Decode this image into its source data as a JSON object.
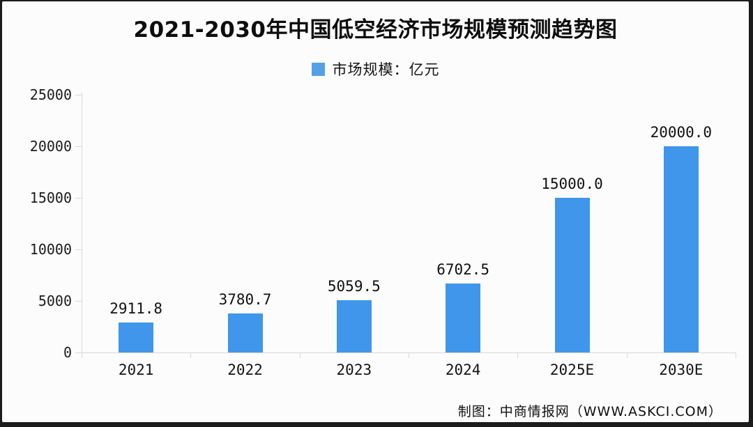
{
  "frame": {
    "border_color": "#1c1c1c",
    "background_color": "#fcfcfc"
  },
  "title": "2021-2030年中国低空经济市场规模预测趋势图",
  "legend": {
    "label": "市场规模：亿元",
    "swatch_color": "#54a0e4"
  },
  "credit": "制图：中商情报网（WWW.ASKCI.COM）",
  "chart_data": {
    "type": "bar",
    "title": "2021-2030年中国低空经济市场规模预测趋势图",
    "legend_entries": [
      "市场规模：亿元"
    ],
    "legend_position": "top-center",
    "categories": [
      "2021",
      "2022",
      "2023",
      "2024",
      "2025E",
      "2030E"
    ],
    "values": [
      2911.8,
      3780.7,
      5059.5,
      6702.5,
      15000.0,
      20000.0
    ],
    "value_labels": [
      "2911.8",
      "3780.7",
      "5059.5",
      "6702.5",
      "15000.0",
      "20000.0"
    ],
    "xlabel": "",
    "ylabel": "",
    "ylim": [
      0,
      25000
    ],
    "yticks": [
      0,
      5000,
      10000,
      15000,
      20000,
      25000
    ],
    "ytick_labels": [
      "0",
      "5000",
      "10000",
      "15000",
      "20000",
      "25000"
    ],
    "grid": false,
    "bar_color": "#3f96ea",
    "axis_color": "#d8d8d8",
    "unit": "亿元",
    "source": "制图：中商情报网（WWW.ASKCI.COM）"
  }
}
